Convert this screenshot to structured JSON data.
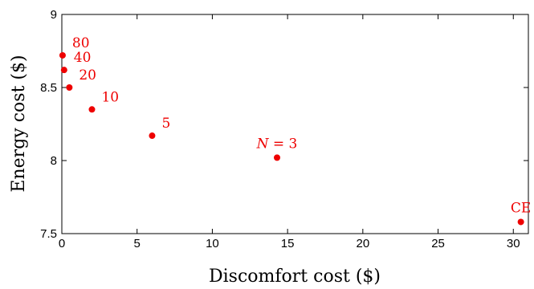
{
  "chart_data": {
    "type": "scatter",
    "xlabel": "Discomfort cost ($)",
    "ylabel": "Energy cost ($)",
    "xlim": [
      0,
      31
    ],
    "ylim": [
      7.5,
      9
    ],
    "xticks": [
      0,
      5,
      10,
      15,
      20,
      25,
      30
    ],
    "yticks": [
      7.5,
      8,
      8.5,
      9
    ],
    "ytick_labels": [
      "7.5",
      "8",
      "8.5",
      "9"
    ],
    "grid": false,
    "legend": "none",
    "point_color": "#ee0000",
    "points": [
      {
        "label": "80",
        "x": 0.05,
        "y": 8.72
      },
      {
        "label": "40",
        "x": 0.15,
        "y": 8.62
      },
      {
        "label": "20",
        "x": 0.5,
        "y": 8.5
      },
      {
        "label": "10",
        "x": 2.0,
        "y": 8.35
      },
      {
        "label": "5",
        "x": 6.0,
        "y": 8.17
      },
      {
        "label": "N = 3",
        "label_var": "N",
        "label_rest": " = 3",
        "x": 14.3,
        "y": 8.02
      },
      {
        "label": "CE",
        "x": 30.5,
        "y": 7.58
      }
    ]
  }
}
